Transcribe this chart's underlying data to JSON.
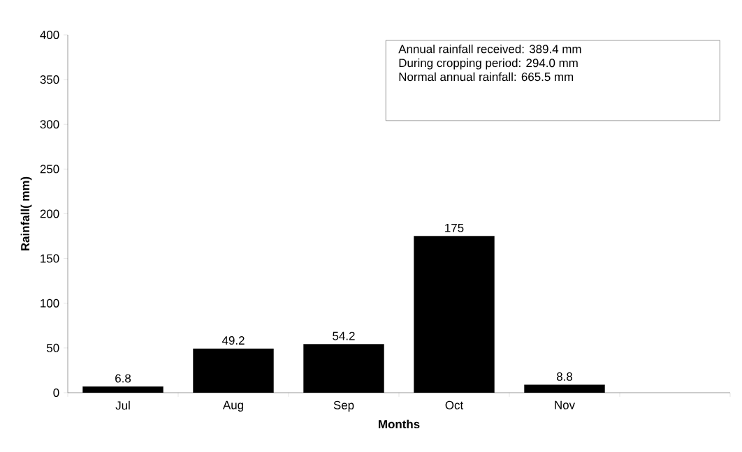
{
  "chart_data": {
    "type": "bar",
    "xlabel": "Months",
    "ylabel": "Rainfall( mm)",
    "categories": [
      "Jul",
      "Aug",
      "Sep",
      "Oct",
      "Nov",
      null
    ],
    "values": [
      6.8,
      49.2,
      54.2,
      175,
      8.8,
      null
    ],
    "color": "#000000",
    "ylim": [
      0,
      400
    ],
    "yticks": [
      0,
      50,
      100,
      150,
      200,
      250,
      300,
      350,
      400
    ],
    "data_labels": true,
    "grid": false,
    "annotations": [
      "Annual rainfall received: 389.4 mm",
      "During cropping period:   294.0 mm",
      "Normal annual rainfall:     665.5 mm"
    ]
  }
}
